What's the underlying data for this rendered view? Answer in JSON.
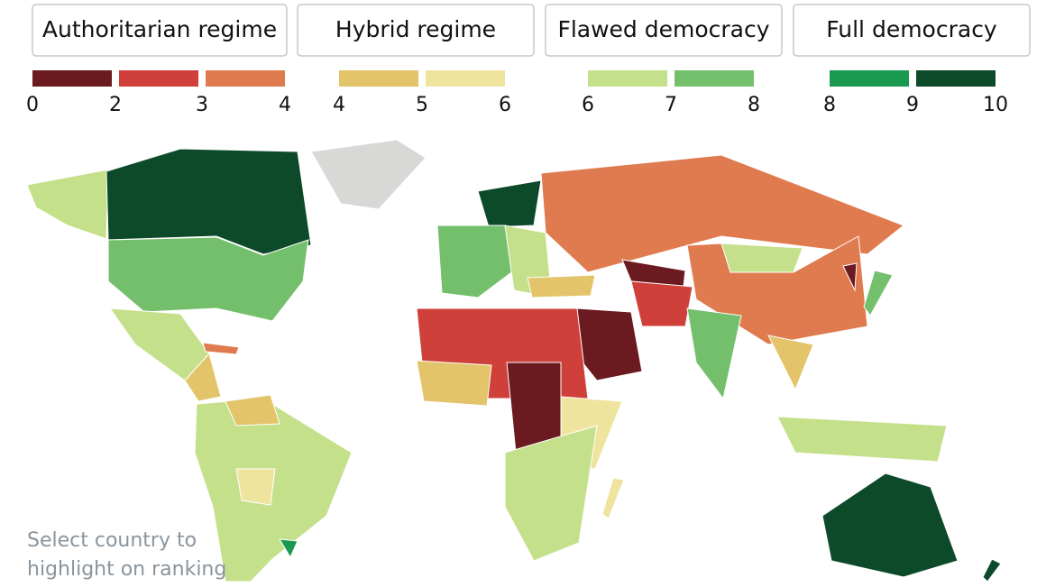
{
  "legend": {
    "groups": [
      {
        "title": "Authoritarian regime",
        "ticks": [
          0,
          2,
          3,
          4
        ],
        "colors": [
          "#6b1a20",
          "#d0403a",
          "#e07b4f"
        ]
      },
      {
        "title": "Hybrid regime",
        "ticks": [
          4,
          5,
          6
        ],
        "colors": [
          "#e3c46a",
          "#efe49e"
        ]
      },
      {
        "title": "Flawed democracy",
        "ticks": [
          6,
          7,
          8
        ],
        "colors": [
          "#c5e08a",
          "#74bf6c"
        ]
      },
      {
        "title": "Full democracy",
        "ticks": [
          8,
          9,
          10
        ],
        "colors": [
          "#1a9a50",
          "#0d4a2a"
        ]
      }
    ]
  },
  "hint": {
    "lines": [
      "Select country to",
      "highlight on ranking"
    ]
  }
}
